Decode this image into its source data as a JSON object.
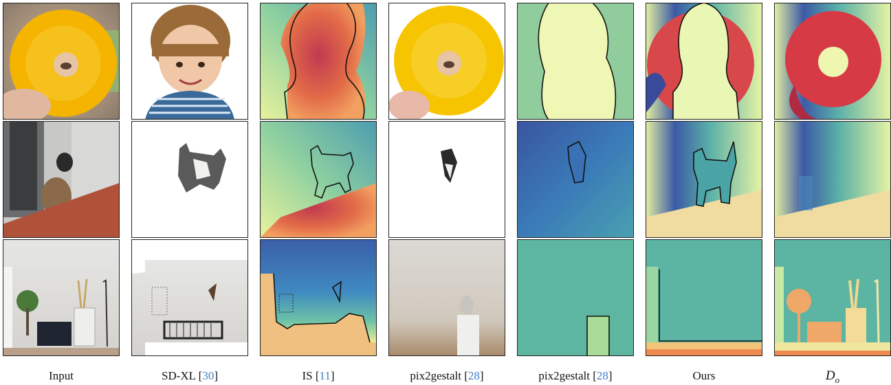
{
  "captions": [
    {
      "text": "Input"
    },
    {
      "text": "SD-XL [",
      "citation": "30",
      "close": "]"
    },
    {
      "text": "IS [",
      "citation": "11",
      "close": "]"
    },
    {
      "text": "pix2gestalt [",
      "citation": "28",
      "close": "]"
    },
    {
      "text": "pix2gestalt [",
      "citation": "28",
      "close": "]"
    },
    {
      "text": "Ours"
    },
    {
      "italic": "D",
      "subscript": "o"
    }
  ]
}
